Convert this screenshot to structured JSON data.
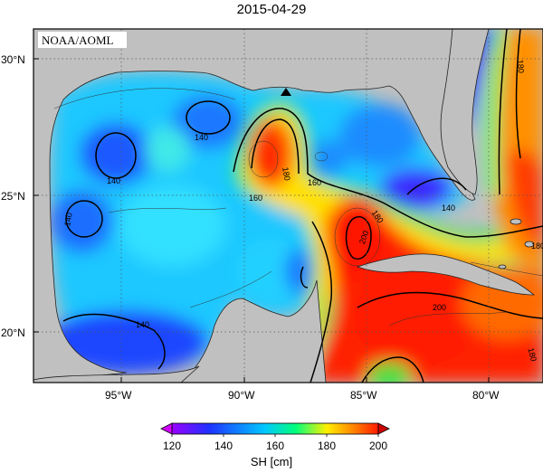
{
  "title": "2015-04-29",
  "credit": "NOAA/AOML",
  "lat_ticks": [
    {
      "value": 30,
      "label": "30°N"
    },
    {
      "value": 25,
      "label": "25°N"
    },
    {
      "value": 20,
      "label": "20°N"
    }
  ],
  "lon_ticks": [
    {
      "value": -95,
      "label": "95°W"
    },
    {
      "value": -90,
      "label": "90°W"
    },
    {
      "value": -85,
      "label": "85°W"
    },
    {
      "value": -80,
      "label": "80°W"
    }
  ],
  "contour_labels": [
    "140",
    "140",
    "140",
    "140",
    "160",
    "160",
    "180",
    "180",
    "180",
    "200",
    "200",
    "140",
    "180",
    "180"
  ],
  "colorbar": {
    "label": "SH [cm]",
    "ticks": [
      "120",
      "140",
      "160",
      "180",
      "200"
    ],
    "min": 120,
    "max": 200,
    "colors": [
      "#9a00ff",
      "#1e32ff",
      "#00c8ff",
      "#00ff7a",
      "#fff000",
      "#ff8c00",
      "#ff1a00"
    ]
  },
  "marker": "triangle",
  "colors": {
    "land": "#c0c0c0",
    "grid": "#555555"
  }
}
